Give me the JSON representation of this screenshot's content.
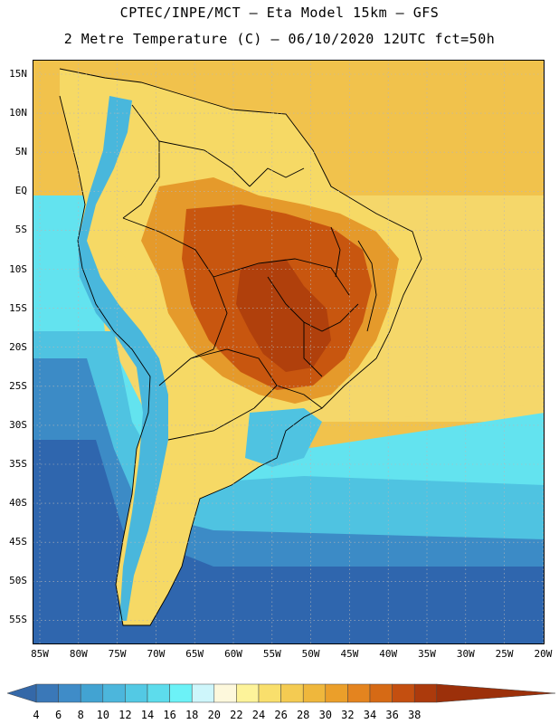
{
  "title_line1": "CPTEC/INPE/MCT –  Eta Model 15km – GFS",
  "title_line2": "2 Metre Temperature (C) – 06/10/2020 12UTC fct=50h",
  "lat_labels": [
    "15N",
    "10N",
    "5N",
    "EQ",
    "5S",
    "10S",
    "15S",
    "20S",
    "25S",
    "30S",
    "35S",
    "40S",
    "45S",
    "50S",
    "55S"
  ],
  "lon_labels": [
    "85W",
    "80W",
    "75W",
    "70W",
    "65W",
    "60W",
    "55W",
    "50W",
    "45W",
    "40W",
    "35W",
    "30W",
    "25W",
    "20W"
  ],
  "colorbar": {
    "values": [
      4,
      6,
      8,
      10,
      12,
      14,
      16,
      18,
      20,
      22,
      24,
      26,
      28,
      30,
      32,
      34,
      36,
      38
    ],
    "colors": [
      "#3a78b8",
      "#3f8cc8",
      "#42a3d2",
      "#4cb6dc",
      "#53c9e4",
      "#5ddcec",
      "#6cf2f7",
      "#cef6fb",
      "#fdf8dc",
      "#fdf39a",
      "#f9df6c",
      "#f4cb52",
      "#efb73c",
      "#eb9f2a",
      "#e4841f",
      "#d66a15",
      "#c44f10",
      "#ac3a0c"
    ],
    "low_color": "#3468a8",
    "high_color": "#9c300a"
  },
  "map_colors": {
    "ocean_deep": "#2f66ae",
    "ocean_mid": "#3c8bc6",
    "ocean_light": "#4fc3e1",
    "ocean_cyan": "#63e3ef",
    "ocean_warm": "#f5d76a",
    "ocean_warmer": "#f1c24c",
    "land_hot": "#c8560f",
    "land_very_hot": "#b0400c",
    "land_warm": "#e59a2b",
    "land_mild": "#f6d965",
    "andes": "#49b7dc",
    "border": "#000000",
    "grid": "#b7b7b7"
  }
}
